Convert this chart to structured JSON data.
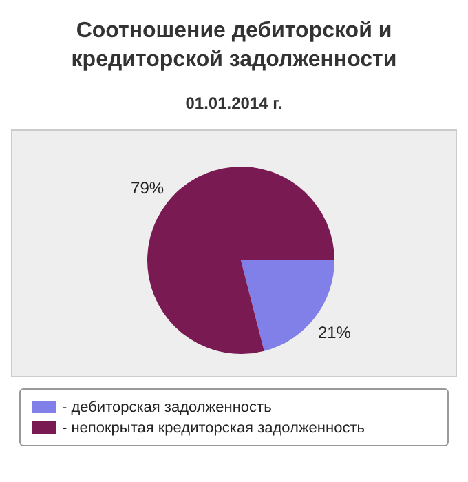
{
  "chart_data": {
    "type": "pie",
    "title": "Соотношение дебиторской и кредиторской задолженности",
    "subtitle": "01.01.2014 г.",
    "categories": [
      "- дебиторская задолженность",
      "- непокрытая кредиторская задолженность"
    ],
    "values": [
      21,
      79
    ],
    "colors": [
      "#8080e8",
      "#7a1a52"
    ],
    "value_labels": [
      "21%",
      "79%"
    ],
    "legend": "bottom"
  }
}
